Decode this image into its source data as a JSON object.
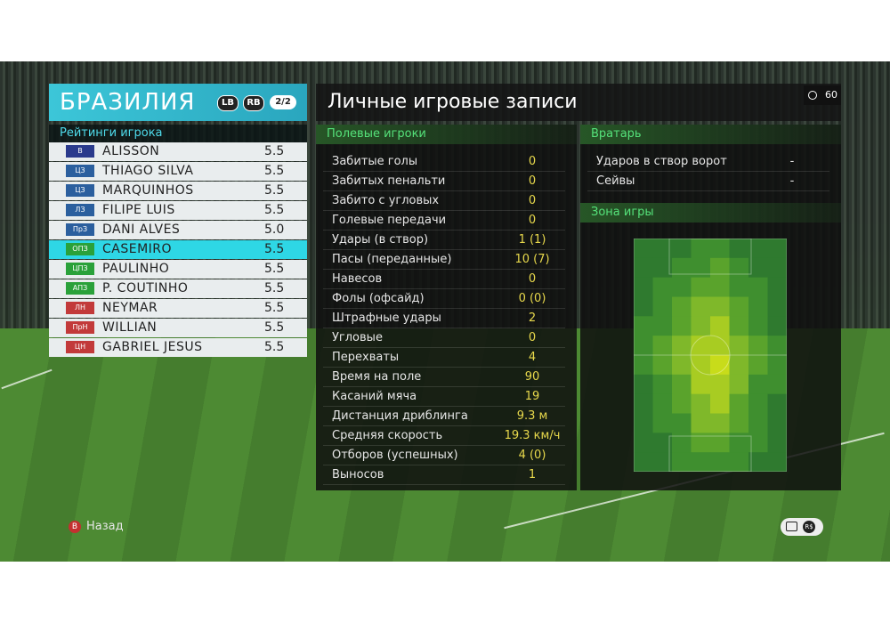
{
  "team": {
    "name": "БРАЗИЛИЯ",
    "lb_label": "LB",
    "rb_label": "RB",
    "page": "2/2"
  },
  "ratings_label": "Рейтинги игрока",
  "players": [
    {
      "pos": "В",
      "name": "ALISSON",
      "rating": "5.5",
      "pos_color": "#2a3a8c",
      "selected": false
    },
    {
      "pos": "ЦЗ",
      "name": "THIAGO SILVA",
      "rating": "5.5",
      "pos_color": "#2b5f9e",
      "selected": false
    },
    {
      "pos": "ЦЗ",
      "name": "MARQUINHOS",
      "rating": "5.5",
      "pos_color": "#2b5f9e",
      "selected": false
    },
    {
      "pos": "ЛЗ",
      "name": "FILIPE LUIS",
      "rating": "5.5",
      "pos_color": "#2b5f9e",
      "selected": false
    },
    {
      "pos": "ПрЗ",
      "name": "DANI ALVES",
      "rating": "5.0",
      "pos_color": "#2b5f9e",
      "selected": false
    },
    {
      "pos": "ОПЗ",
      "name": "CASEMIRO",
      "rating": "5.5",
      "pos_color": "#2aa13a",
      "selected": true
    },
    {
      "pos": "ЦПЗ",
      "name": "PAULINHO",
      "rating": "5.5",
      "pos_color": "#2aa13a",
      "selected": false
    },
    {
      "pos": "АПЗ",
      "name": "P. COUTINHO",
      "rating": "5.5",
      "pos_color": "#2aa13a",
      "selected": false
    },
    {
      "pos": "ЛН",
      "name": "NEYMAR",
      "rating": "5.5",
      "pos_color": "#c23a3a",
      "selected": false
    },
    {
      "pos": "ПрН",
      "name": "WILLIAN",
      "rating": "5.5",
      "pos_color": "#c23a3a",
      "selected": false
    },
    {
      "pos": "ЦН",
      "name": "GABRIEL JESUS",
      "rating": "5.5",
      "pos_color": "#c23a3a",
      "selected": false
    }
  ],
  "stats_title": "Личные игровые записи",
  "timer": "60",
  "field_section": {
    "title": "Полевые игроки",
    "rows": [
      {
        "label": "Забитые голы",
        "value": "0"
      },
      {
        "label": "Забитых пенальти",
        "value": "0"
      },
      {
        "label": "Забито с угловых",
        "value": "0"
      },
      {
        "label": "Голевые передачи",
        "value": "0"
      },
      {
        "label": "Удары (в створ)",
        "value": "1 (1)"
      },
      {
        "label": "Пасы (переданные)",
        "value": "10 (7)"
      },
      {
        "label": "Навесов",
        "value": "0"
      },
      {
        "label": "Фолы (офсайд)",
        "value": "0 (0)"
      },
      {
        "label": "Штрафные удары",
        "value": "2"
      },
      {
        "label": "Угловые",
        "value": "0"
      },
      {
        "label": "Перехваты",
        "value": "4"
      },
      {
        "label": "Время на поле",
        "value": "90"
      },
      {
        "label": "Касаний мяча",
        "value": "19"
      },
      {
        "label": "Дистанция дриблинга",
        "value": "9.3 м"
      },
      {
        "label": "Средняя скорость",
        "value": "19.3 км/ч"
      },
      {
        "label": "Отборов (успешных)",
        "value": "4 (0)"
      },
      {
        "label": "Выносов",
        "value": "1"
      }
    ]
  },
  "gk_section": {
    "title": "Вратарь",
    "rows": [
      {
        "label": "Ударов в створ ворот",
        "value": "-"
      },
      {
        "label": "Сейвы",
        "value": "-"
      }
    ]
  },
  "zone_section": {
    "title": "Зона игры"
  },
  "back_label": "Назад",
  "back_button": "B",
  "rs_label": "R$"
}
